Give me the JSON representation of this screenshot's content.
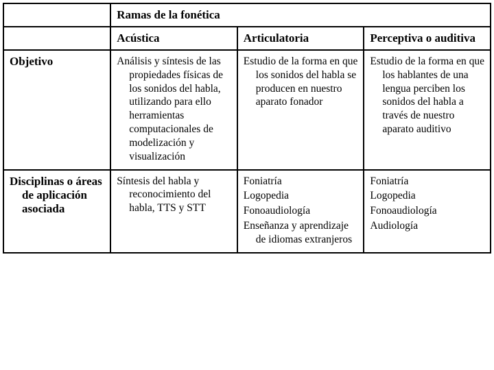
{
  "table": {
    "type": "table",
    "border_color": "#000000",
    "background_color": "#ffffff",
    "header_fontsize": 17,
    "cell_fontsize": 15.5,
    "main_header": "Ramas de la fonética",
    "columns": [
      "Acústica",
      "Articulatoria",
      "Perceptiva o auditiva"
    ],
    "row_headers": [
      "Objetivo",
      "Disciplinas o áreas de aplicación asociada"
    ],
    "rows": [
      {
        "acustica": "Análisis y síntesis de las propiedades físicas de los sonidos del habla, utilizando para ello herramientas computacionales de modelización y visualización",
        "articulatoria": "Estudio  de la forma en que los sonidos del habla se producen en nuestro aparato fonador",
        "perceptiva": "Estudio de la forma en que los hablantes de una lengua perciben los sonidos del habla a través de nuestro aparato auditivo"
      },
      {
        "acustica": "Síntesis del habla y reconocimiento del habla, TTS y STT",
        "articulatoria_list": [
          "Foniatría",
          "Logopedia",
          "Fonoaudiología",
          "Enseñanza y aprendizaje de idiomas extranjeros"
        ],
        "perceptiva_list": [
          "Foniatría",
          "Logopedia",
          "Fonoaudiología",
          "Audiología"
        ]
      }
    ]
  }
}
